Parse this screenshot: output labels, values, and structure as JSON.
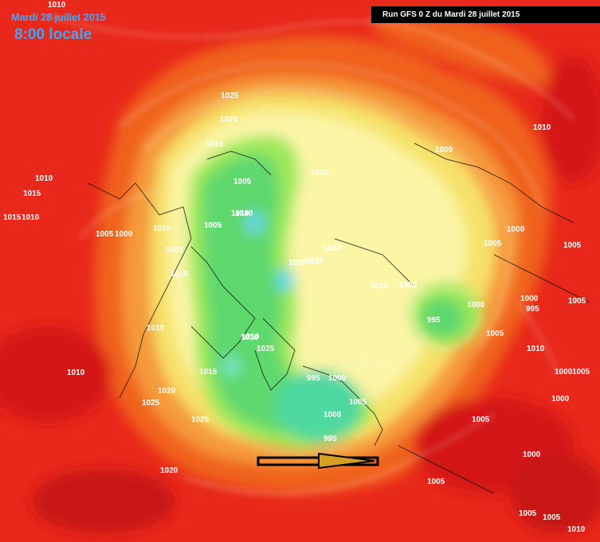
{
  "header": {
    "date": "Mardi 28 juillet 2015",
    "time": "8:00 locale",
    "run": "Run GFS 0 Z du Mardi 28 juillet 2015"
  },
  "isobars": [
    "1010",
    "1025",
    "1020",
    "1015",
    "1005",
    "1010",
    "1015",
    "1010",
    "1015",
    "1010",
    "1010",
    "1005",
    "1000",
    "1010",
    "1005",
    "1010",
    "1005",
    "1020",
    "1025",
    "1030",
    "1005",
    "1010",
    "1000",
    "995",
    "1000",
    "1010",
    "1010",
    "1030",
    "1025",
    "1015",
    "1020",
    "1025",
    "995",
    "1000",
    "1005",
    "1000",
    "995",
    "1025",
    "1020",
    "1010",
    "1000",
    "1005",
    "1000",
    "995",
    "1005",
    "1005",
    "1000",
    "1005",
    "1005",
    "1000",
    "1010",
    "1000",
    "1005",
    "1005",
    "1000",
    "1005",
    "1010",
    "1010",
    "1010",
    "1005"
  ]
}
